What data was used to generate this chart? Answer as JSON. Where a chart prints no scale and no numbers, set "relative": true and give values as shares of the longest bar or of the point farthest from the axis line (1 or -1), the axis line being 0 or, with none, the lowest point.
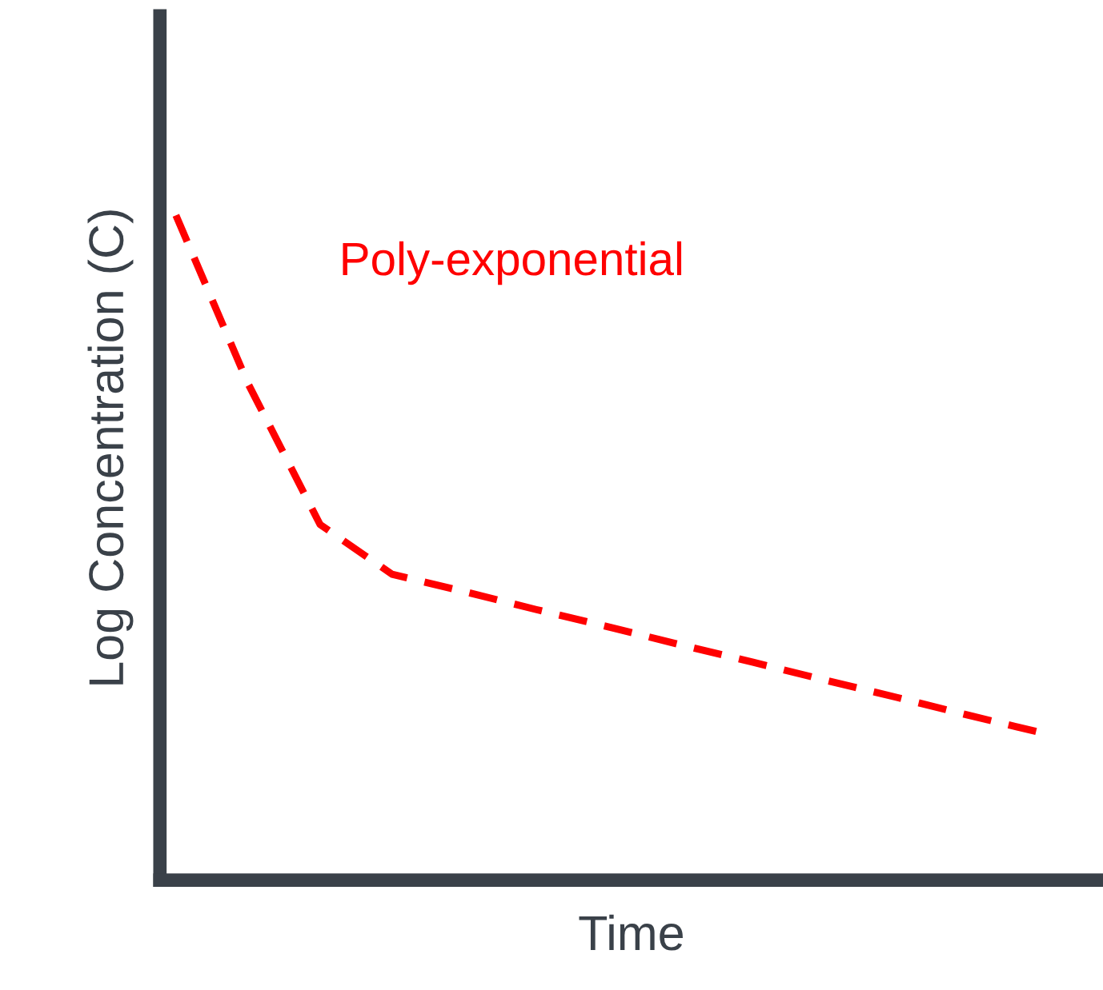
{
  "chart_data": {
    "type": "line",
    "relative": true,
    "xlabel": "Time",
    "ylabel": "Log Concentration (C)",
    "annotations": [
      "Poly-exponential"
    ],
    "categories": [
      null,
      null,
      null,
      null,
      null,
      null,
      null,
      null,
      null,
      null,
      null,
      null,
      null
    ],
    "series": [
      {
        "color": "#ff0000",
        "values": [
          1,
          0.747,
          0.535,
          0.46,
          0.434,
          0.407,
          0.381,
          0.354,
          0.328,
          0.301,
          0.275,
          0.248,
          0.222
        ]
      }
    ],
    "line_style": "dashed",
    "marker": "none",
    "grid": false,
    "legend": false
  }
}
